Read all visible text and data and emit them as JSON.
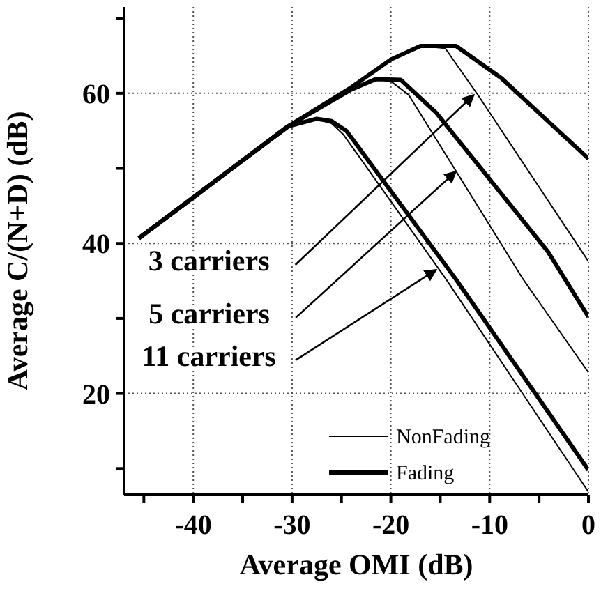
{
  "chart_data": {
    "type": "line",
    "xlabel": "Average OMI (dB)",
    "ylabel": "Average C/(N+D)  (dB)",
    "xlim": [
      -47,
      0
    ],
    "ylim": [
      6.5,
      71.5
    ],
    "xticks": [
      {
        "value": -45,
        "label": null
      },
      -40,
      {
        "value": -35,
        "label": null
      },
      -30,
      {
        "value": -25,
        "label": null
      },
      -20,
      {
        "value": -15,
        "label": null
      },
      -10,
      {
        "value": -5,
        "label": null
      },
      0
    ],
    "yticks": [
      {
        "value": 10,
        "label": null
      },
      20,
      {
        "value": 30,
        "label": null
      },
      40,
      {
        "value": 50,
        "label": null
      },
      60,
      {
        "value": 70,
        "label": null
      }
    ],
    "grid": true,
    "legend": "bottom right",
    "marker": "none",
    "line_style": "solid",
    "series": [
      {
        "name": "NonFading",
        "color": "#000000",
        "x": [
          -45.5,
          -30.4,
          -27.5,
          -26,
          -24.8,
          -14.4,
          0
        ],
        "values": [
          40.7,
          55.6,
          56.6,
          56,
          54.5,
          35.2,
          6.9
        ]
      },
      {
        "name": "Fading",
        "color": "#000000",
        "x": [
          -45.5,
          -30.4,
          -27.5,
          -26,
          -24.5,
          -13.4,
          0
        ],
        "values": [
          40.7,
          55.6,
          56.6,
          56.3,
          55,
          35.2,
          9.8
        ]
      },
      {
        "color": "#000000",
        "x": [
          -45.5,
          -30.4,
          -24,
          -21.5,
          -20,
          -18.2,
          -6.6,
          0
        ],
        "values": [
          40.7,
          55.6,
          60.5,
          61.9,
          61.6,
          59.8,
          35.2,
          22.8
        ]
      },
      {
        "color": "#000000",
        "x": [
          -45.5,
          -30.4,
          -24,
          -21.5,
          -19,
          -15.4,
          -4.1,
          0
        ],
        "values": [
          40.7,
          55.6,
          60.5,
          61.9,
          61.8,
          57.4,
          38.9,
          30.2
        ]
      },
      {
        "color": "#000000",
        "x": [
          -45.5,
          -30.4,
          -24,
          -20,
          -17,
          -14.5,
          -11.2,
          0
        ],
        "values": [
          40.7,
          55.6,
          60.8,
          64.5,
          66.3,
          66,
          59.8,
          37.6
        ]
      },
      {
        "color": "#000000",
        "x": [
          -45.5,
          -30.4,
          -24,
          -20,
          -17,
          -13.4,
          -8.8,
          0
        ],
        "values": [
          40.7,
          55.6,
          60.8,
          64.5,
          66.3,
          66.3,
          62,
          51.3
        ]
      }
    ],
    "annotations": [
      {
        "text": "3 carriers",
        "x": -11.6,
        "y": 59.8
      },
      {
        "text": "5 carriers",
        "x": -13.4,
        "y": 49.6
      },
      {
        "text": "11 carriers",
        "x": -15.4,
        "y": 36.5
      }
    ]
  }
}
